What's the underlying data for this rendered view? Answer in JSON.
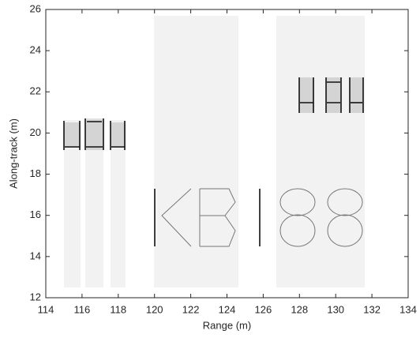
{
  "chart_data": {
    "type": "image",
    "xlabel": "Range (m)",
    "ylabel": "Along-track (m)",
    "xlim": [
      114,
      134
    ],
    "ylim": [
      12,
      26
    ],
    "xticks": [
      114,
      116,
      118,
      120,
      122,
      124,
      126,
      128,
      130,
      132,
      134
    ],
    "yticks": [
      12,
      14,
      16,
      18,
      20,
      22,
      24,
      26
    ]
  }
}
